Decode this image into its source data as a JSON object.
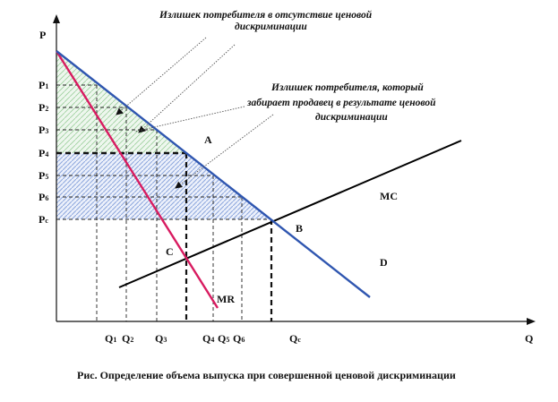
{
  "annotations": {
    "top_line1": "Излишек потребителя в отсутствие ценовой",
    "top_line2": "дискриминации",
    "mid_line1": "Излишек потребителя, который",
    "mid_line2": "забирает продавец в результате ценовой",
    "mid_line3": "дискриминации"
  },
  "axes": {
    "y_label": "P",
    "x_label": "Q"
  },
  "price_labels": [
    {
      "main": "P",
      "sub": "1"
    },
    {
      "main": "P",
      "sub": "2"
    },
    {
      "main": "P",
      "sub": "3"
    },
    {
      "main": "P",
      "sub": "4"
    },
    {
      "main": "P",
      "sub": "5"
    },
    {
      "main": "P",
      "sub": "6"
    },
    {
      "main": "P",
      "sub": "c"
    }
  ],
  "quantity_labels": [
    {
      "main": "Q",
      "sub": "1"
    },
    {
      "main": "Q",
      "sub": "2"
    },
    {
      "main": "Q",
      "sub": "3"
    },
    {
      "main": "Q",
      "sub": "4"
    },
    {
      "main": "Q",
      "sub": "5"
    },
    {
      "main": "Q",
      "sub": "6"
    },
    {
      "main": "Q",
      "sub": "c"
    }
  ],
  "points": {
    "a": "A",
    "b": "B",
    "c": "C"
  },
  "curves": {
    "mc": "MC",
    "d": "D",
    "mr": "MR"
  },
  "caption": "Рис. Определение объема выпуска при совершенной ценовой дискриминации",
  "colors": {
    "demand": "#2f56b0",
    "mr": "#d81b60",
    "mc": "#000000",
    "green_hatch": "#7cc47c",
    "blue_hatch": "#7b9bd6"
  }
}
